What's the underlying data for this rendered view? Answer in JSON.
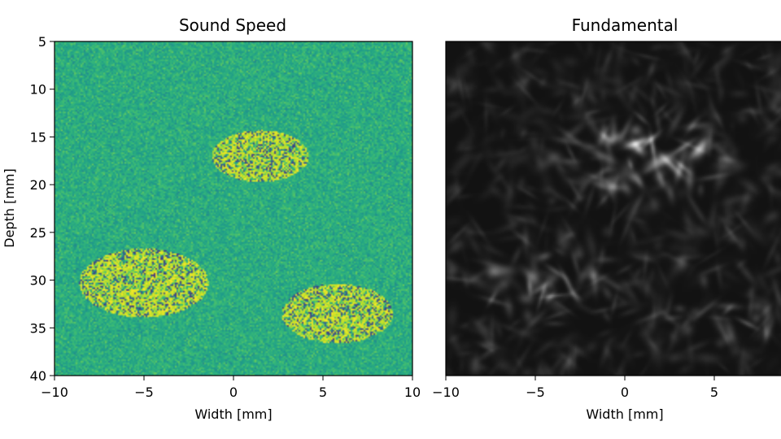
{
  "chart_data": [
    {
      "type": "heatmap",
      "title": "Sound Speed",
      "xlabel": "Width [mm]",
      "ylabel": "Depth [mm]",
      "xlim": [
        -10,
        10
      ],
      "ylim": [
        40,
        5
      ],
      "xticks": [
        -10,
        -5,
        0,
        5,
        10
      ],
      "yticks": [
        5,
        10,
        15,
        20,
        25,
        30,
        35,
        40
      ],
      "colormap": "viridis",
      "inclusions": [
        {
          "center_x_mm": 1.5,
          "center_y_mm": 17.0,
          "radius_mm": 2.7
        },
        {
          "center_x_mm": -5.0,
          "center_y_mm": 30.3,
          "radius_mm": 3.6
        },
        {
          "center_x_mm": 5.8,
          "center_y_mm": 33.5,
          "radius_mm": 3.1
        }
      ]
    },
    {
      "type": "heatmap",
      "title": "Fundamental",
      "xlabel": "Width [mm]",
      "xlim": [
        -10,
        10
      ],
      "ylim": [
        40,
        5
      ],
      "xticks": [
        -10,
        -5,
        0,
        5
      ],
      "colormap": "gray",
      "bright_regions": [
        {
          "center_x_mm": 1.5,
          "center_y_mm": 17.0,
          "intensity": 0.9
        },
        {
          "center_x_mm": -5.0,
          "center_y_mm": 30.0,
          "intensity": 0.45
        },
        {
          "center_x_mm": 6.0,
          "center_y_mm": 33.5,
          "intensity": 0.35
        }
      ]
    }
  ]
}
